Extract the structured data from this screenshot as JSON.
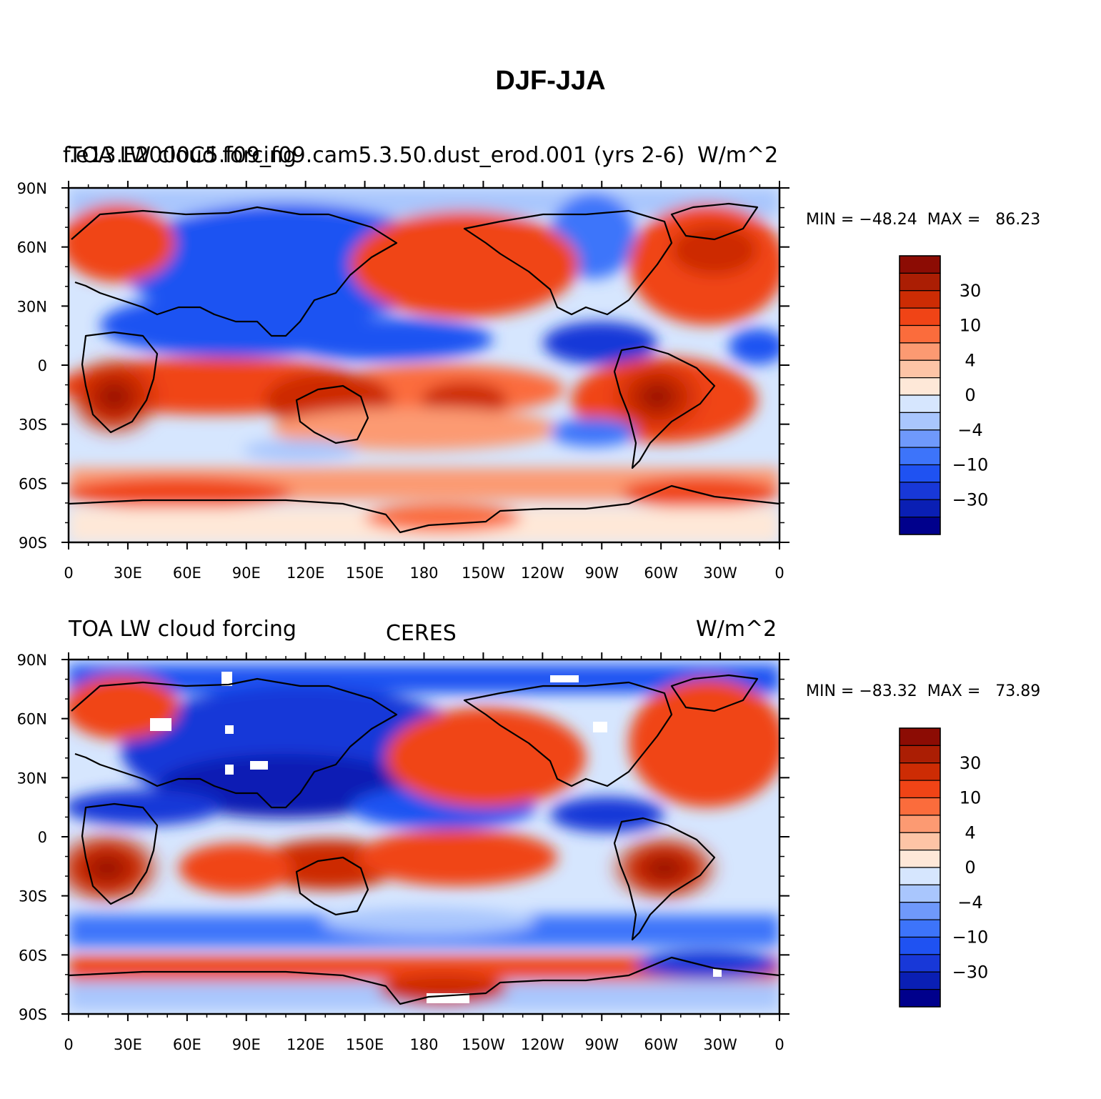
{
  "title": "DJF-JJA",
  "colorbar_colors": [
    "#00008c",
    "#0a1fb4",
    "#1838d8",
    "#1f52f2",
    "#3d74fa",
    "#6f99fb",
    "#a9c6fd",
    "#d6e6fe",
    "#fee8d8",
    "#fdc4a6",
    "#fc9a72",
    "#fb6c3c",
    "#f04416",
    "#cd2c04",
    "#ab1e04",
    "#8c0c04"
  ],
  "colorbar_labels": [
    "−30",
    "−10",
    "−4",
    "0",
    "4",
    "10",
    "30"
  ],
  "lat_labels": [
    "90N",
    "60N",
    "30N",
    "0",
    "30S",
    "60S",
    "90S"
  ],
  "lon_labels": [
    "0",
    "30E",
    "60E",
    "90E",
    "120E",
    "150E",
    "180",
    "150W",
    "120W",
    "90W",
    "60W",
    "30W",
    "0"
  ],
  "panels": [
    {
      "left": "TOA LW cloud forcing",
      "overlap": "f.e13.F2000C5.f09_f09.cam5.3.50.dust_erod.001 (yrs 2-6)",
      "center": "",
      "right": "W/m^2",
      "stats": "MIN = −48.24  MAX =   86.23"
    },
    {
      "left": "TOA LW cloud forcing",
      "overlap": "",
      "center": "CERES",
      "right": "W/m^2",
      "stats": "MIN = −83.32  MAX =   73.89"
    }
  ]
}
